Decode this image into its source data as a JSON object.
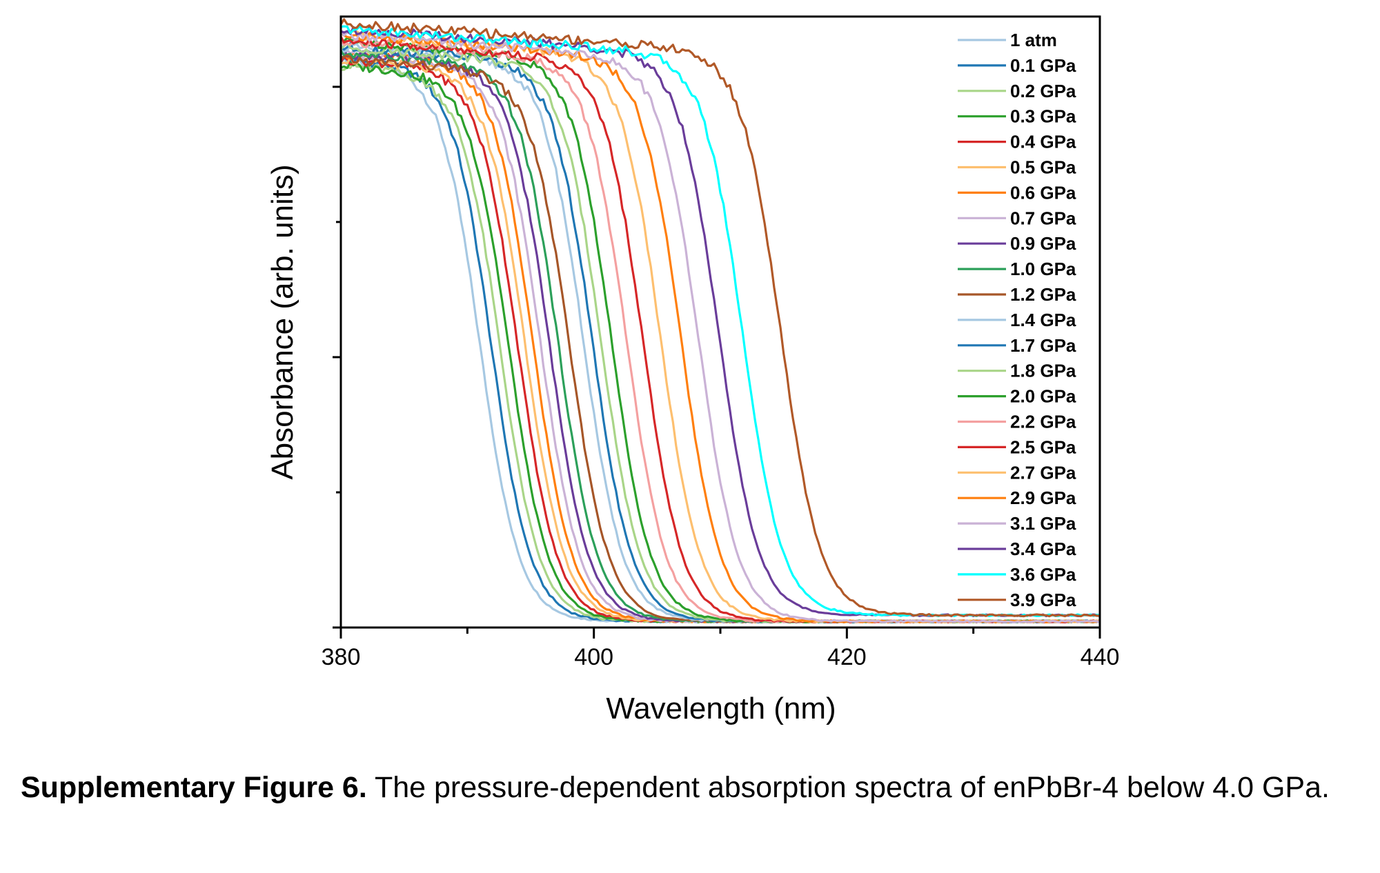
{
  "chart_data": {
    "type": "line",
    "xlabel": "Wavelength (nm)",
    "ylabel": "Absorbance (arb. units)",
    "xlim": [
      380,
      440
    ],
    "ylim": [
      0,
      1
    ],
    "x_ticks": [
      380,
      400,
      420,
      440
    ],
    "y_tick_labels_shown": false,
    "grid": false,
    "legend_position": "top-right",
    "curve_model": "sigmoid absorption edge: y = base + (top - base) / (1 + exp((x - edge)/width)); values in arb. units",
    "series": [
      {
        "name": "1 atm",
        "color": "#a6c8e2",
        "edge": 391.0,
        "top": 0.93,
        "base": 0.01
      },
      {
        "name": "0.1 GPa",
        "color": "#1f77b4",
        "edge": 391.9,
        "top": 0.93,
        "base": 0.01
      },
      {
        "name": "0.2 GPa",
        "color": "#a9d588",
        "edge": 392.6,
        "top": 0.92,
        "base": 0.01
      },
      {
        "name": "0.3 GPa",
        "color": "#2ca02c",
        "edge": 393.3,
        "top": 0.92,
        "base": 0.01
      },
      {
        "name": "0.4 GPa",
        "color": "#d62728",
        "edge": 394.0,
        "top": 0.93,
        "base": 0.01
      },
      {
        "name": "0.5 GPa",
        "color": "#fdbf6f",
        "edge": 394.6,
        "top": 0.93,
        "base": 0.01
      },
      {
        "name": "0.6 GPa",
        "color": "#ff7f0e",
        "edge": 395.2,
        "top": 0.94,
        "base": 0.01
      },
      {
        "name": "0.7 GPa",
        "color": "#cab2d6",
        "edge": 395.8,
        "top": 0.94,
        "base": 0.01
      },
      {
        "name": "0.9 GPa",
        "color": "#6a3d9a",
        "edge": 396.5,
        "top": 0.94,
        "base": 0.01
      },
      {
        "name": "1.0 GPa",
        "color": "#2ca05a",
        "edge": 397.2,
        "top": 0.94,
        "base": 0.01
      },
      {
        "name": "1.2 GPa",
        "color": "#a65628",
        "edge": 398.1,
        "top": 0.93,
        "base": 0.01
      },
      {
        "name": "1.4 GPa",
        "color": "#a6c8e2",
        "edge": 399.2,
        "top": 0.95,
        "base": 0.01
      },
      {
        "name": "1.7 GPa",
        "color": "#1f77b4",
        "edge": 399.9,
        "top": 0.95,
        "base": 0.01
      },
      {
        "name": "1.8 GPa",
        "color": "#a9d588",
        "edge": 400.6,
        "top": 0.95,
        "base": 0.01
      },
      {
        "name": "2.0 GPa",
        "color": "#2ca02c",
        "edge": 401.4,
        "top": 0.96,
        "base": 0.01
      },
      {
        "name": "2.2 GPa",
        "color": "#f4a0a0",
        "edge": 402.6,
        "top": 0.96,
        "base": 0.01
      },
      {
        "name": "2.5 GPa",
        "color": "#d62728",
        "edge": 403.9,
        "top": 0.96,
        "base": 0.01
      },
      {
        "name": "2.7 GPa",
        "color": "#fdbf6f",
        "edge": 405.3,
        "top": 0.97,
        "base": 0.01
      },
      {
        "name": "2.9 GPa",
        "color": "#ff7f0e",
        "edge": 406.9,
        "top": 0.97,
        "base": 0.01
      },
      {
        "name": "3.1 GPa",
        "color": "#cab2d6",
        "edge": 408.3,
        "top": 0.97,
        "base": 0.01
      },
      {
        "name": "3.4 GPa",
        "color": "#6a3d9a",
        "edge": 409.9,
        "top": 0.98,
        "base": 0.02
      },
      {
        "name": "3.6 GPa",
        "color": "#00ffff",
        "edge": 411.8,
        "top": 0.98,
        "base": 0.02
      },
      {
        "name": "3.9 GPa",
        "color": "#b15928",
        "edge": 414.8,
        "top": 0.99,
        "base": 0.02
      }
    ]
  },
  "caption": {
    "lead": "Supplementary Figure 6.",
    "text": " The pressure-dependent absorption spectra of enPbBr-4 below 4.0 GPa."
  }
}
